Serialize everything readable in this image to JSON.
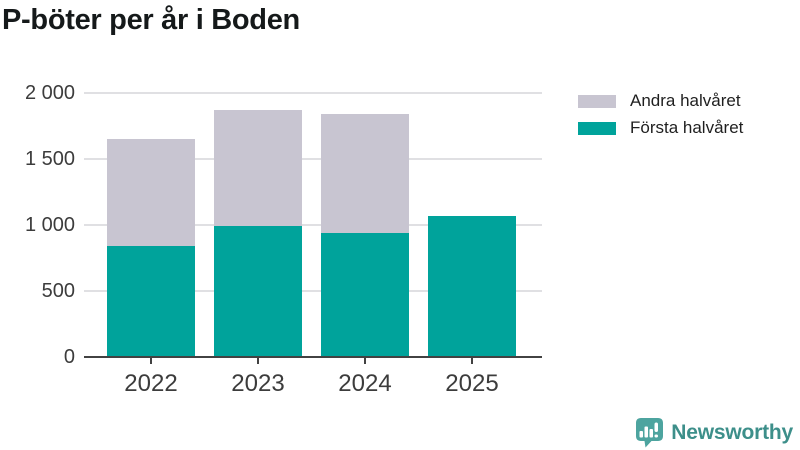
{
  "title": "P-böter per år i Boden",
  "legend": {
    "items": [
      {
        "label": "Andra halvåret",
        "color": "#c8c5d1"
      },
      {
        "label": "Första halvåret",
        "color": "#00a39b"
      }
    ]
  },
  "chart_data": {
    "type": "bar",
    "stacked": true,
    "title": "P-böter per år i Boden",
    "categories": [
      "2022",
      "2023",
      "2024",
      "2025"
    ],
    "series": [
      {
        "name": "Första halvåret",
        "color": "#00a39b",
        "values": [
          840,
          990,
          940,
          1070
        ]
      },
      {
        "name": "Andra halvåret",
        "color": "#c8c5d1",
        "values": [
          810,
          880,
          900,
          0
        ]
      }
    ],
    "stack_totals": [
      1650,
      1870,
      1840,
      1070
    ],
    "xlabel": "",
    "ylabel": "",
    "ylim": [
      0,
      2000
    ],
    "yticks": [
      0,
      500,
      1000,
      1500,
      2000
    ],
    "ytick_labels": [
      "0",
      "500",
      "1 000",
      "1 500",
      "2 000"
    ],
    "grid": true,
    "legend_position": "top-right"
  },
  "colors": {
    "first_half": "#00a39b",
    "second_half": "#c8c5d1",
    "gridline": "#e0e0e3",
    "axis": "#424242",
    "tick_text": "#3c3c3c",
    "title_text": "#15191a",
    "legend_text": "#1f1f1f",
    "brand_text": "#3d8f8a",
    "brand_icon": "#4da49f",
    "background": "#ffffff"
  },
  "footer": {
    "brand": "Newsworthy"
  }
}
